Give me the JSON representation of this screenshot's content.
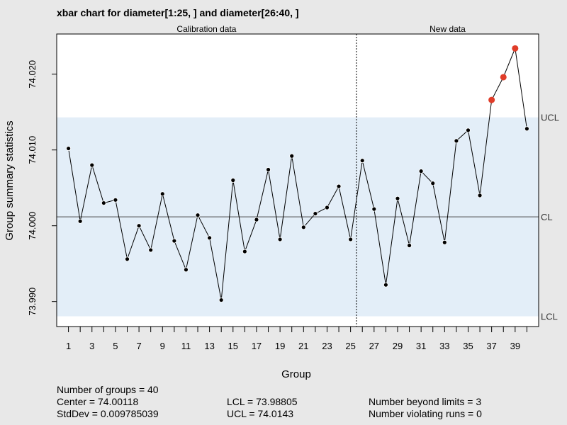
{
  "title": "xbar chart for diameter[1:25, ] and diameter[26:40, ]",
  "stats": {
    "n_groups": "Number of groups = 40",
    "center": "Center = 74.00118",
    "stddev": "StdDev = 0.009785039",
    "lcl": "LCL = 73.98805",
    "ucl": "UCL = 74.0143",
    "beyond": "Number beyond limits = 3",
    "violating": "Number violating runs = 0"
  },
  "chart_data": {
    "type": "line",
    "title": "xbar chart for diameter[1:25, ] and diameter[26:40, ]",
    "xlabel": "Group",
    "ylabel": "Group summary statistics",
    "xlim": [
      0,
      41
    ],
    "ylim": [
      73.9867,
      74.0253
    ],
    "x_tick_labels": [
      "1",
      "3",
      "5",
      "7",
      "9",
      "11",
      "13",
      "15",
      "17",
      "19",
      "21",
      "23",
      "25",
      "27",
      "29",
      "31",
      "33",
      "35",
      "37",
      "39"
    ],
    "y_ticks": [
      73.99,
      74.0,
      74.01,
      74.02
    ],
    "y_tick_labels": [
      "73.990",
      "74.000",
      "74.010",
      "74.020"
    ],
    "center": 74.00118,
    "lcl": 73.98805,
    "ucl": 74.0143,
    "limit_labels": {
      "ucl": "UCL",
      "cl": "CL",
      "lcl": "LCL"
    },
    "phase_boundary": 25.5,
    "phase_labels": [
      "Calibration data",
      "New data"
    ],
    "x": [
      1,
      2,
      3,
      4,
      5,
      6,
      7,
      8,
      9,
      10,
      11,
      12,
      13,
      14,
      15,
      16,
      17,
      18,
      19,
      20,
      21,
      22,
      23,
      24,
      25,
      26,
      27,
      28,
      29,
      30,
      31,
      32,
      33,
      34,
      35,
      36,
      37,
      38,
      39,
      40
    ],
    "values": [
      74.0102,
      74.0006,
      74.008,
      74.003,
      74.0034,
      73.9956,
      74.0,
      73.9968,
      74.0042,
      73.998,
      73.9942,
      74.0014,
      73.9984,
      73.9902,
      74.006,
      73.9966,
      74.0008,
      74.0074,
      73.9982,
      74.0092,
      73.9998,
      74.0016,
      74.0024,
      74.0052,
      73.9982,
      74.0086,
      74.0022,
      73.9922,
      74.0036,
      73.9974,
      74.0072,
      74.0056,
      73.9978,
      74.0112,
      74.0126,
      74.004,
      74.0166,
      74.0196,
      74.0234,
      74.0128
    ],
    "beyond_limit_color": "#e03c28",
    "point_color": "#000000",
    "band_color": "#e3eef8"
  }
}
